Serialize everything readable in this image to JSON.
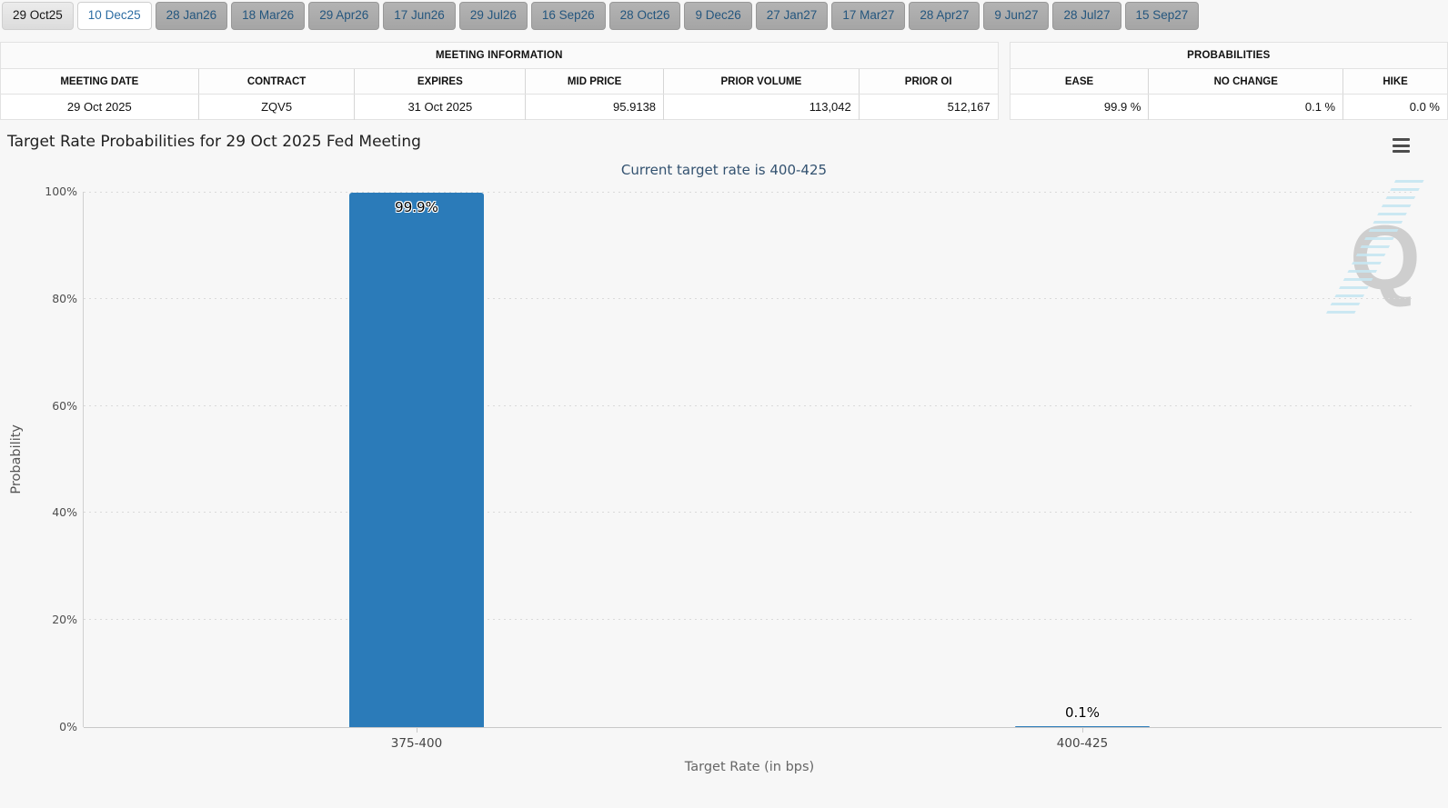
{
  "tabs": {
    "items": [
      {
        "label": "29 Oct25",
        "state": "selected"
      },
      {
        "label": "10 Dec25",
        "state": "active-white"
      },
      {
        "label": "28 Jan26",
        "state": "default"
      },
      {
        "label": "18 Mar26",
        "state": "default"
      },
      {
        "label": "29 Apr26",
        "state": "default"
      },
      {
        "label": "17 Jun26",
        "state": "default"
      },
      {
        "label": "29 Jul26",
        "state": "default"
      },
      {
        "label": "16 Sep26",
        "state": "default"
      },
      {
        "label": "28 Oct26",
        "state": "default"
      },
      {
        "label": "9 Dec26",
        "state": "default"
      },
      {
        "label": "27 Jan27",
        "state": "default"
      },
      {
        "label": "17 Mar27",
        "state": "default"
      },
      {
        "label": "28 Apr27",
        "state": "default"
      },
      {
        "label": "9 Jun27",
        "state": "default"
      },
      {
        "label": "28 Jul27",
        "state": "default"
      },
      {
        "label": "15 Sep27",
        "state": "default"
      }
    ]
  },
  "meeting_information": {
    "title": "MEETING INFORMATION",
    "headers": [
      "MEETING DATE",
      "CONTRACT",
      "EXPIRES",
      "MID PRICE",
      "PRIOR VOLUME",
      "PRIOR OI"
    ],
    "row": [
      "29 Oct 2025",
      "ZQV5",
      "31 Oct 2025",
      "95.9138",
      "113,042",
      "512,167"
    ]
  },
  "probabilities": {
    "title": "PROBABILITIES",
    "headers": [
      "EASE",
      "NO CHANGE",
      "HIKE"
    ],
    "row": [
      "99.9 %",
      "0.1 %",
      "0.0 %"
    ]
  },
  "chart": {
    "menu_icon": "hamburger-menu",
    "watermark_letter": "Q"
  },
  "chart_data": {
    "type": "bar",
    "title": "Target Rate Probabilities for 29 Oct 2025 Fed Meeting",
    "subtitle": "Current target rate is 400-425",
    "categories": [
      "375-400",
      "400-425"
    ],
    "values": [
      99.9,
      0.1
    ],
    "data_labels": [
      "99.9%",
      "0.1%"
    ],
    "xlabel": "Target Rate (in bps)",
    "ylabel": "Probability",
    "ylim": [
      0,
      100
    ],
    "ytick_step": 20,
    "ytick_labels": [
      "0%",
      "20%",
      "40%",
      "60%",
      "80%",
      "100%"
    ],
    "bar_color": "#2b7bb9",
    "subtitle_color": "#335270",
    "grid": "dotted-horizontal",
    "legend": "none"
  }
}
